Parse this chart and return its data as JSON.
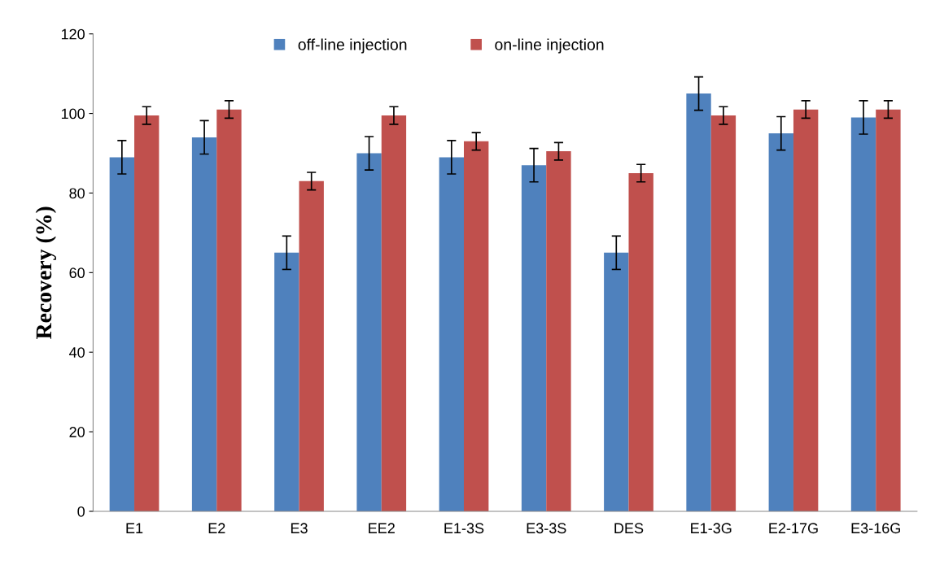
{
  "chart_data": {
    "type": "bar",
    "ylabel": "Recovery (%)",
    "categories": [
      "E1",
      "E2",
      "E3",
      "EE2",
      "E1-3S",
      "E3-3S",
      "DES",
      "E1-3G",
      "E2-17G",
      "E3-16G"
    ],
    "series": [
      {
        "name": "off-line injection",
        "color": "#4f81bd",
        "values": [
          89,
          94,
          65,
          90,
          89,
          87,
          65,
          105,
          95,
          99
        ],
        "errors": [
          4.2,
          4.2,
          4.2,
          4.2,
          4.2,
          4.2,
          4.2,
          4.2,
          4.2,
          4.2
        ]
      },
      {
        "name": "on-line injection",
        "color": "#c0504d",
        "values": [
          99.5,
          101,
          83,
          99.5,
          93,
          90.5,
          85,
          99.5,
          101,
          101
        ],
        "errors": [
          2.2,
          2.2,
          2.2,
          2.2,
          2.2,
          2.2,
          2.2,
          2.2,
          2.2,
          2.2
        ]
      }
    ],
    "ylim": [
      0,
      120
    ],
    "yticks": [
      0,
      20,
      40,
      60,
      80,
      100,
      120
    ],
    "grid": false,
    "legend": "top"
  }
}
